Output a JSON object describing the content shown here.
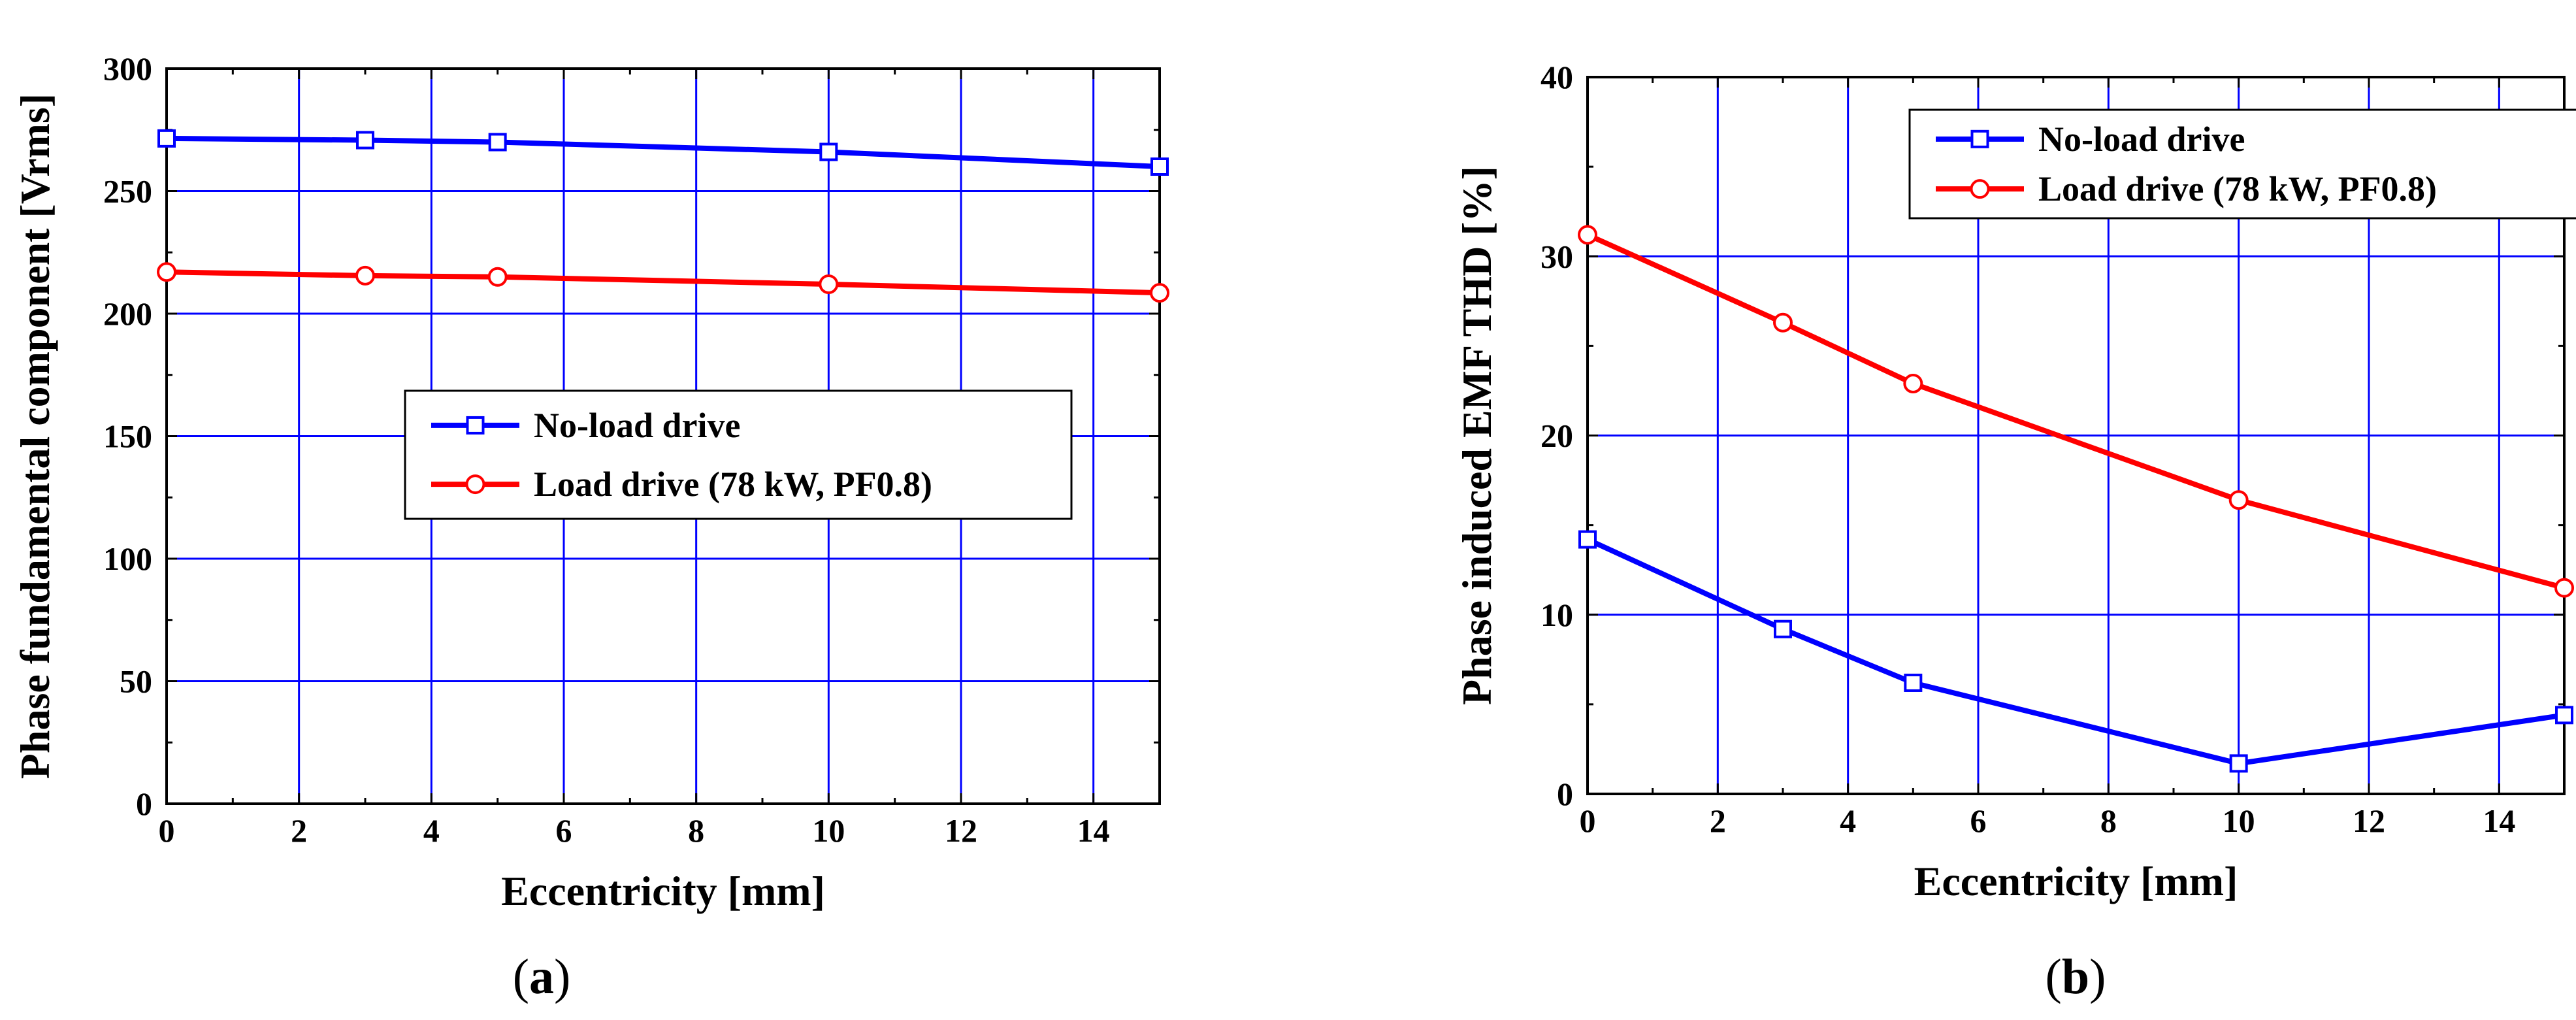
{
  "colors": {
    "series_blue": "#0000ff",
    "series_red": "#ff0000",
    "grid": "#0000ff",
    "axes": "#000000"
  },
  "chart_data": [
    {
      "type": "line",
      "panel_label": "(a)",
      "panel_letter": "a",
      "title": "",
      "xlabel": "Eccentricity [mm]",
      "ylabel": "Phase fundamental component [Vrms]",
      "xlim": [
        0,
        15
      ],
      "ylim": [
        0,
        300
      ],
      "xticks": [
        0,
        2,
        4,
        6,
        8,
        10,
        12,
        14
      ],
      "yticks": [
        0,
        50,
        100,
        150,
        200,
        250,
        300
      ],
      "grid": true,
      "legend_position": "center",
      "series": [
        {
          "name": "No-load drive",
          "marker": "square",
          "color": "#0000ff",
          "x": [
            0,
            3,
            5,
            10,
            15
          ],
          "y": [
            271.5,
            270.8,
            270,
            266,
            260
          ]
        },
        {
          "name": "Load drive (78 kW, PF0.8)",
          "marker": "circle",
          "color": "#ff0000",
          "x": [
            0,
            3,
            5,
            10,
            15
          ],
          "y": [
            217,
            215.5,
            215,
            212,
            208.5
          ]
        }
      ]
    },
    {
      "type": "line",
      "panel_label": "(b)",
      "panel_letter": "b",
      "title": "",
      "xlabel": "Eccentricity [mm]",
      "ylabel": "Phase induced EMF THD [%]",
      "xlim": [
        0,
        15
      ],
      "ylim": [
        0,
        40
      ],
      "xticks": [
        0,
        2,
        4,
        6,
        8,
        10,
        12,
        14
      ],
      "yticks": [
        0,
        10,
        20,
        30,
        40
      ],
      "grid": true,
      "legend_position": "top-center",
      "series": [
        {
          "name": "No-load drive",
          "marker": "square",
          "color": "#0000ff",
          "x": [
            0,
            3,
            5,
            10,
            15
          ],
          "y": [
            14.2,
            9.2,
            6.2,
            1.7,
            4.4
          ]
        },
        {
          "name": "Load drive (78 kW, PF0.8)",
          "marker": "circle",
          "color": "#ff0000",
          "x": [
            0,
            3,
            5,
            10,
            15
          ],
          "y": [
            31.2,
            26.3,
            22.9,
            16.4,
            11.5
          ]
        }
      ]
    }
  ]
}
